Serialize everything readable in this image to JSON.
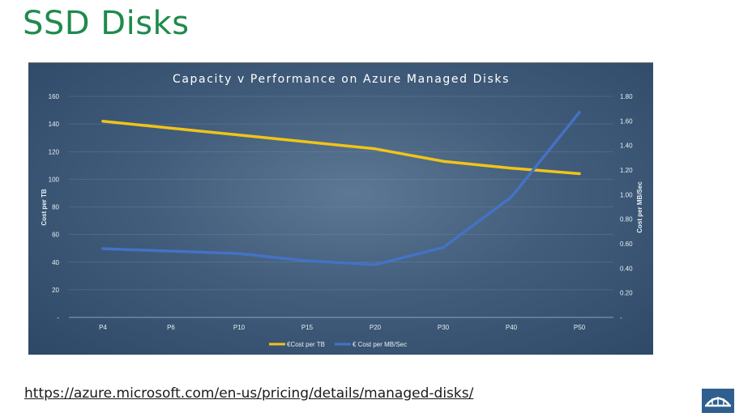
{
  "slide": {
    "title": "SSD Disks",
    "source_url": "https://azure.microsoft.com/en-us/pricing/details/managed-disks/"
  },
  "colors": {
    "title": "#1f8a4c",
    "series_cost_tb": "#f2c318",
    "series_cost_mb": "#4472c4",
    "logo": "#2f5f8f"
  },
  "icons": {
    "logo": "bridge-logo-icon"
  },
  "chart_data": {
    "type": "line",
    "title": "Capacity v Performance on Azure Managed Disks",
    "categories": [
      "P4",
      "P6",
      "P10",
      "P15",
      "P20",
      "P30",
      "P40",
      "P50"
    ],
    "y_left_label": "Cost per TB",
    "y_right_label": "Cost per MB/Sec",
    "y_left_ticks": [
      "-",
      "20",
      "40",
      "60",
      "80",
      "100",
      "120",
      "140",
      "160"
    ],
    "y_right_ticks": [
      "-",
      "0.20",
      "0.40",
      "0.60",
      "0.80",
      "1.00",
      "1.20",
      "1.40",
      "1.60",
      "1.80"
    ],
    "ylim_left": [
      0,
      160
    ],
    "ylim_right": [
      0,
      1.8
    ],
    "grid": true,
    "legend_position": "bottom",
    "series": [
      {
        "name": "€Cost per TB",
        "axis": "left",
        "values": [
          142,
          137,
          132,
          127,
          122,
          113,
          108,
          104
        ]
      },
      {
        "name": "€ Cost per MB/Sec",
        "axis": "right",
        "values": [
          0.56,
          0.54,
          0.52,
          0.46,
          0.43,
          0.57,
          0.98,
          1.67
        ]
      }
    ]
  }
}
